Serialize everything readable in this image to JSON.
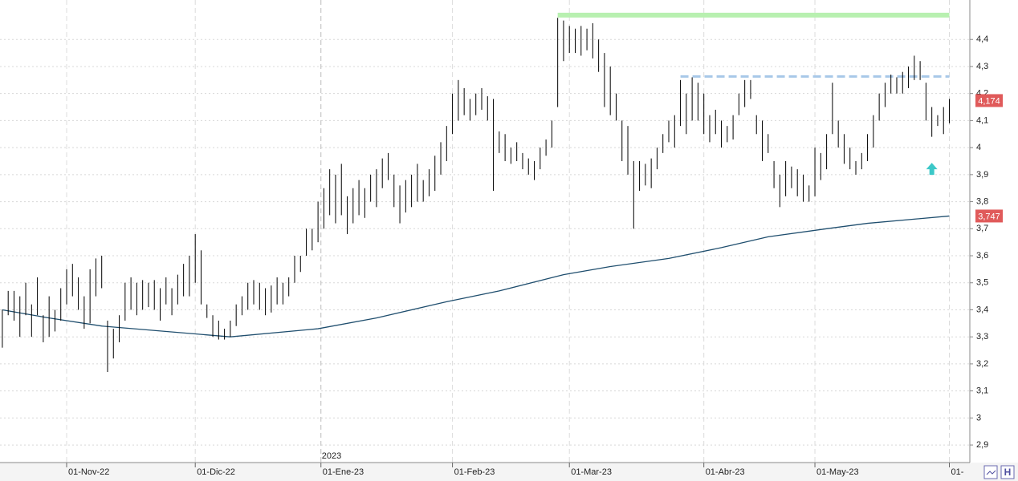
{
  "chart_data": {
    "type": "ohlc",
    "high": [
      3.4,
      3.47,
      3.47,
      3.45,
      3.5,
      3.42,
      3.52,
      3.38,
      3.45,
      3.4,
      3.48,
      3.55,
      3.57,
      3.52,
      3.45,
      3.55,
      3.59,
      3.6,
      3.36,
      3.33,
      3.38,
      3.5,
      3.52,
      3.5,
      3.51,
      3.5,
      3.51,
      3.48,
      3.52,
      3.48,
      3.53,
      3.57,
      3.6,
      3.68,
      3.62,
      3.42,
      3.38,
      3.36,
      3.33,
      3.36,
      3.42,
      3.45,
      3.5,
      3.51,
      3.5,
      3.48,
      3.49,
      3.52,
      3.5,
      3.52,
      3.6,
      3.6,
      3.7,
      3.7,
      3.8,
      3.85,
      3.92,
      3.9,
      3.94,
      3.82,
      3.85,
      3.88,
      3.85,
      3.9,
      3.92,
      3.96,
      3.98,
      3.9,
      3.86,
      3.88,
      3.9,
      3.94,
      3.88,
      3.92,
      3.97,
      4.02,
      4.08,
      4.2,
      4.25,
      4.22,
      4.18,
      4.2,
      4.22,
      4.19,
      4.18,
      4.06,
      4.05,
      4.0,
      4.02,
      3.98,
      3.96,
      3.95,
      4.0,
      4.03,
      4.1,
      4.48,
      4.47,
      4.45,
      4.44,
      4.45,
      4.44,
      4.46,
      4.4,
      4.35,
      4.3,
      4.2,
      4.1,
      4.08,
      3.95,
      3.95,
      3.94,
      3.96,
      4.0,
      4.05,
      4.1,
      4.12,
      4.25,
      4.2,
      4.26,
      4.24,
      4.2,
      4.12,
      4.14,
      4.1,
      4.08,
      4.12,
      4.2,
      4.25,
      4.25,
      4.12,
      4.1,
      4.05,
      3.95,
      3.9,
      3.95,
      3.93,
      3.92,
      3.9,
      3.86,
      4.0,
      3.98,
      4.05,
      4.24,
      4.1,
      4.05,
      4.0,
      3.95,
      3.98,
      4.05,
      4.12,
      4.2,
      4.24,
      4.27,
      4.26,
      4.28,
      4.3,
      4.34,
      4.32,
      4.24,
      4.15,
      4.12,
      4.15,
      4.18
    ],
    "low": [
      3.26,
      3.38,
      3.36,
      3.3,
      3.38,
      3.3,
      3.38,
      3.28,
      3.3,
      3.32,
      3.36,
      3.42,
      3.45,
      3.4,
      3.33,
      3.35,
      3.45,
      3.48,
      3.17,
      3.22,
      3.28,
      3.36,
      3.4,
      3.38,
      3.4,
      3.41,
      3.4,
      3.36,
      3.42,
      3.38,
      3.42,
      3.45,
      3.45,
      3.5,
      3.42,
      3.37,
      3.3,
      3.29,
      3.29,
      3.3,
      3.34,
      3.38,
      3.4,
      3.42,
      3.4,
      3.38,
      3.39,
      3.42,
      3.42,
      3.45,
      3.5,
      3.54,
      3.6,
      3.62,
      3.65,
      3.7,
      3.75,
      3.72,
      3.75,
      3.68,
      3.72,
      3.75,
      3.74,
      3.8,
      3.78,
      3.85,
      3.88,
      3.78,
      3.72,
      3.76,
      3.78,
      3.8,
      3.8,
      3.82,
      3.84,
      3.9,
      3.95,
      4.05,
      4.1,
      4.12,
      4.1,
      4.12,
      4.14,
      4.1,
      3.84,
      3.98,
      3.95,
      3.94,
      3.95,
      3.92,
      3.9,
      3.88,
      3.92,
      3.97,
      4.0,
      4.15,
      4.32,
      4.35,
      4.35,
      4.34,
      4.36,
      4.33,
      4.28,
      4.15,
      4.12,
      4.1,
      3.95,
      3.9,
      3.7,
      3.84,
      3.86,
      3.85,
      3.92,
      3.98,
      4.02,
      4.0,
      4.08,
      4.05,
      4.1,
      4.1,
      4.05,
      4.02,
      4.05,
      4.0,
      4.02,
      4.03,
      4.12,
      4.15,
      4.18,
      4.05,
      3.95,
      3.98,
      3.85,
      3.78,
      3.82,
      3.85,
      3.82,
      3.8,
      3.8,
      3.82,
      3.88,
      3.92,
      4.05,
      4.0,
      3.94,
      3.92,
      3.9,
      3.92,
      3.95,
      4.0,
      4.1,
      4.15,
      4.2,
      4.2,
      4.2,
      4.22,
      4.25,
      4.25,
      4.1,
      4.04,
      4.08,
      4.05,
      4.09
    ],
    "bar_color": "#000000",
    "moving_average": {
      "color": "#1f4e6e",
      "x": [
        0,
        8,
        17,
        39,
        54,
        64,
        76,
        85,
        96,
        104,
        114,
        123,
        131,
        141,
        148,
        162
      ],
      "values": [
        3.4,
        3.37,
        3.34,
        3.3,
        3.33,
        3.37,
        3.43,
        3.47,
        3.53,
        3.56,
        3.59,
        3.63,
        3.67,
        3.7,
        3.72,
        3.747
      ]
    },
    "last_price": {
      "value": 4.174,
      "label": "4,174",
      "color": "#e05a5a"
    },
    "ma_last": {
      "value": 3.747,
      "label": "3,747",
      "color": "#e05a5a"
    },
    "lines": [
      {
        "y": 4.49,
        "x": [
          95,
          162
        ],
        "color": "#b8f0b0",
        "dash": false
      },
      {
        "y": 4.263,
        "x": [
          116,
          162
        ],
        "color": "#a8c8e8",
        "dash": true
      }
    ],
    "arrow": {
      "x": 159,
      "y": 3.92,
      "color": "#3cc8c8"
    },
    "year_label": "2023",
    "xlim": [
      -0.4,
      165.5
    ],
    "ylim": [
      2.835,
      4.546
    ],
    "xticks": [
      {
        "value": 11,
        "label": "01-Nov-22"
      },
      {
        "value": 33,
        "label": "01-Dic-22"
      },
      {
        "value": 54.5,
        "label": "01-Ene-23"
      },
      {
        "value": 77,
        "label": "01-Feb-23"
      },
      {
        "value": 97,
        "label": "01-Mar-23"
      },
      {
        "value": 120,
        "label": "01-Abr-23"
      },
      {
        "value": 139,
        "label": "01-May-23"
      },
      {
        "value": 162,
        "label": "01-"
      }
    ],
    "yticks": [
      {
        "value": 2.9,
        "label": "2,9"
      },
      3,
      {
        "value": 3.1,
        "label": "3,1"
      },
      {
        "value": 3.2,
        "label": "3,2"
      },
      {
        "value": 3.3,
        "label": "3,3"
      },
      {
        "value": 3.4,
        "label": "3,4"
      },
      {
        "value": 3.5,
        "label": "3,5"
      },
      {
        "value": 3.6,
        "label": "3,6"
      },
      {
        "value": 3.7,
        "label": "3,7"
      },
      {
        "value": 3.8,
        "label": "3,8"
      },
      {
        "value": 3.9,
        "label": "3,9"
      },
      4,
      {
        "value": 4.1,
        "label": "4,1"
      },
      {
        "value": 4.2,
        "label": "4,2"
      },
      {
        "value": 4.3,
        "label": "4,3"
      },
      {
        "value": 4.4,
        "label": "4,4"
      }
    ],
    "grid": true
  }
}
